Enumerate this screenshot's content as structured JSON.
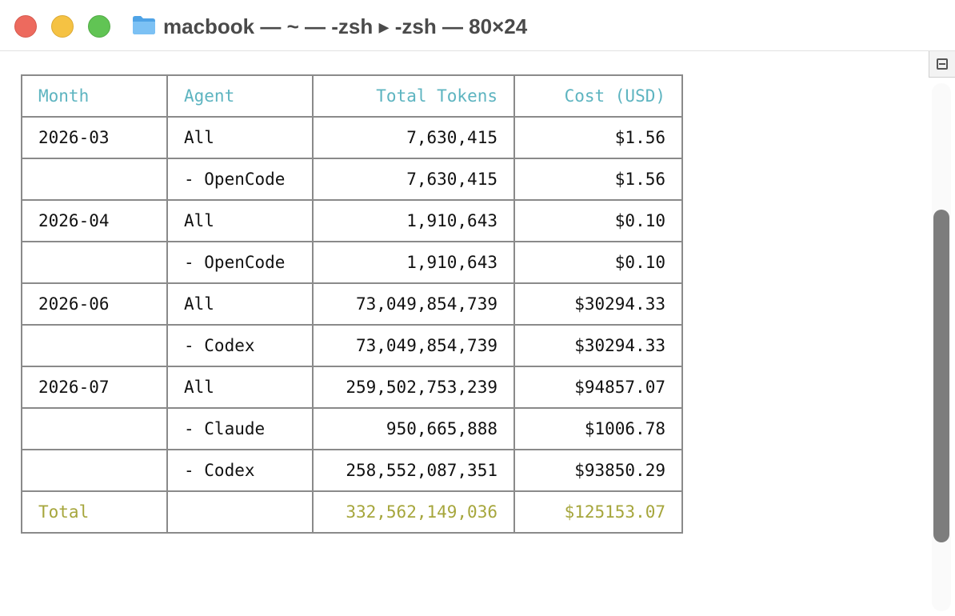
{
  "window": {
    "title": "macbook — ~ — -zsh ▸ -zsh — 80×24",
    "icon": "folder-icon"
  },
  "colors": {
    "header": "#5db4c0",
    "total": "#a6a63c",
    "border": "#8a8a8a",
    "text": "#111111"
  },
  "table": {
    "headers": {
      "month": "Month",
      "agent": "Agent",
      "tokens": "Total Tokens",
      "cost": "Cost (USD)"
    },
    "rows": [
      {
        "month": "2026-03",
        "agent": "All",
        "tokens": "7,630,415",
        "cost": "$1.56"
      },
      {
        "month": "",
        "agent": "- OpenCode",
        "tokens": "7,630,415",
        "cost": "$1.56"
      },
      {
        "month": "2026-04",
        "agent": "All",
        "tokens": "1,910,643",
        "cost": "$0.10"
      },
      {
        "month": "",
        "agent": "- OpenCode",
        "tokens": "1,910,643",
        "cost": "$0.10"
      },
      {
        "month": "2026-06",
        "agent": "All",
        "tokens": "73,049,854,739",
        "cost": "$30294.33"
      },
      {
        "month": "",
        "agent": "- Codex",
        "tokens": "73,049,854,739",
        "cost": "$30294.33"
      },
      {
        "month": "2026-07",
        "agent": "All",
        "tokens": "259,502,753,239",
        "cost": "$94857.07"
      },
      {
        "month": "",
        "agent": "- Claude",
        "tokens": "950,665,888",
        "cost": "$1006.78"
      },
      {
        "month": "",
        "agent": "- Codex",
        "tokens": "258,552,087,351",
        "cost": "$93850.29"
      }
    ],
    "total": {
      "label": "Total",
      "agent": "",
      "tokens": "332,562,149,036",
      "cost": "$125153.07"
    }
  }
}
